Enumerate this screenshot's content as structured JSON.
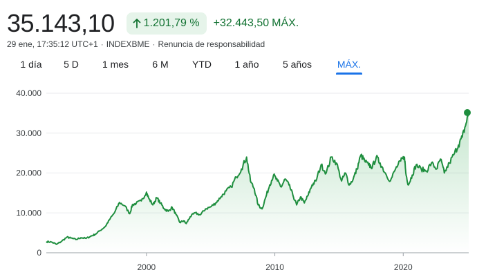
{
  "quote": {
    "price": "35.143,10",
    "change_pct": "1.201,79 %",
    "change_abs": "+32.443,50",
    "period_label": "MÁX.",
    "timestamp": "29 ene, 17:35:12 UTC+1",
    "exchange": "INDEXBME",
    "disclaimer": "Renuncia de responsabilidad",
    "separator": "·"
  },
  "colors": {
    "up": "#137333",
    "up_bg": "#e6f4ea",
    "line": "#1e8e3e",
    "accent": "#1a73e8"
  },
  "tabs": [
    {
      "label": "1 día",
      "active": false
    },
    {
      "label": "5 D",
      "active": false
    },
    {
      "label": "1 mes",
      "active": false
    },
    {
      "label": "6 M",
      "active": false
    },
    {
      "label": "YTD",
      "active": false
    },
    {
      "label": "1 año",
      "active": false
    },
    {
      "label": "5 años",
      "active": false
    },
    {
      "label": "MÁX.",
      "active": true
    }
  ],
  "chart_data": {
    "type": "area",
    "title": "",
    "xlabel": "",
    "ylabel": "",
    "xlim": [
      1992.2,
      2025.1
    ],
    "ylim": [
      0,
      40000
    ],
    "yticks": [
      {
        "value": 0,
        "label": "0"
      },
      {
        "value": 10000,
        "label": "10.000"
      },
      {
        "value": 20000,
        "label": "20.000"
      },
      {
        "value": 30000,
        "label": "30.000"
      },
      {
        "value": 40000,
        "label": "40.000"
      }
    ],
    "xticks": [
      {
        "value": 2000,
        "label": "2000"
      },
      {
        "value": 2010,
        "label": "2010"
      },
      {
        "value": 2020,
        "label": "2020"
      }
    ],
    "grid": true,
    "series": [
      {
        "name": "INDEXBME",
        "x": [
          1992.2,
          1992.6,
          1993.0,
          1993.4,
          1993.8,
          1994.1,
          1994.5,
          1994.9,
          1995.3,
          1995.7,
          1996.0,
          1996.4,
          1996.8,
          1997.1,
          1997.5,
          1997.9,
          1998.3,
          1998.7,
          1998.9,
          1999.2,
          1999.6,
          2000.0,
          2000.2,
          2000.5,
          2000.8,
          2001.1,
          2001.4,
          2001.7,
          2002.0,
          2002.3,
          2002.6,
          2002.9,
          2003.1,
          2003.4,
          2003.8,
          2004.2,
          2004.6,
          2005.0,
          2005.4,
          2005.8,
          2006.2,
          2006.6,
          2007.0,
          2007.4,
          2007.8,
          2008.1,
          2008.4,
          2008.7,
          2009.0,
          2009.3,
          2009.6,
          2009.9,
          2010.2,
          2010.5,
          2010.8,
          2011.1,
          2011.4,
          2011.7,
          2012.0,
          2012.3,
          2012.6,
          2012.9,
          2013.2,
          2013.6,
          2014.0,
          2014.4,
          2014.8,
          2015.2,
          2015.5,
          2015.8,
          2016.1,
          2016.4,
          2016.7,
          2017.0,
          2017.3,
          2017.6,
          2017.9,
          2018.2,
          2018.6,
          2019.0,
          2019.4,
          2019.8,
          2020.1,
          2020.2,
          2020.4,
          2020.7,
          2021.0,
          2021.4,
          2021.8,
          2022.2,
          2022.6,
          2022.9,
          2023.2,
          2023.6,
          2024.0,
          2024.3,
          2024.6,
          2024.9,
          2025.1
        ],
        "y": [
          2800,
          2700,
          2100,
          2900,
          3900,
          3700,
          3300,
          3800,
          3600,
          4200,
          4600,
          5600,
          6600,
          8200,
          10000,
          12600,
          11800,
          9800,
          12000,
          12400,
          13000,
          15200,
          13500,
          12000,
          13800,
          12400,
          11000,
          10400,
          11400,
          9600,
          7600,
          8000,
          7300,
          9000,
          10000,
          9500,
          11000,
          11500,
          12500,
          14000,
          15500,
          16500,
          19000,
          21000,
          24000,
          18000,
          16000,
          12000,
          11000,
          14000,
          17000,
          19500,
          18000,
          16500,
          18500,
          17000,
          14500,
          12000,
          14000,
          12500,
          14500,
          17000,
          18000,
          22000,
          20000,
          24000,
          22500,
          18000,
          20000,
          17000,
          18500,
          21000,
          24500,
          23000,
          22000,
          21500,
          24000,
          22500,
          20000,
          18000,
          21000,
          23000,
          24000,
          20000,
          17000,
          19500,
          22000,
          21000,
          20500,
          22500,
          21000,
          23500,
          20000,
          22500,
          25000,
          27000,
          29000,
          32500,
          35143
        ]
      }
    ],
    "last_point": {
      "x": 2025.1,
      "y": 35143.1
    }
  }
}
